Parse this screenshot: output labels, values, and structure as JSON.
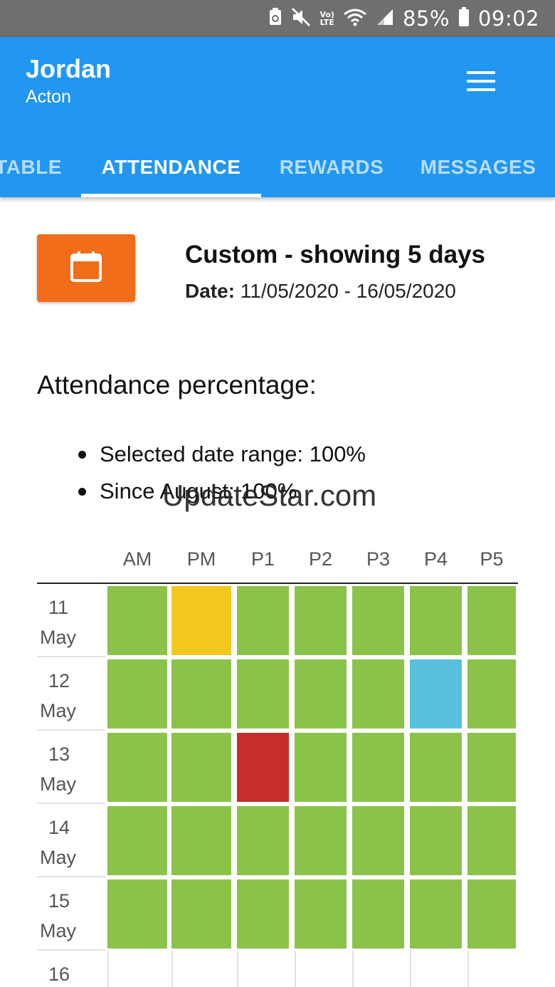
{
  "status_bar": {
    "battery_percent": "85%",
    "time": "09:02",
    "lte_label": "Vo)\nLTE",
    "icons": [
      "recycle-icon",
      "mute-icon",
      "volte-icon",
      "wifi-icon",
      "signal-icon",
      "battery-icon"
    ]
  },
  "header": {
    "first_name": "Jordan",
    "last_name": "Acton",
    "menu_icon": "hamburger-menu-icon"
  },
  "tabs": [
    {
      "label": "TABLE",
      "active": false
    },
    {
      "label": "ATTENDANCE",
      "active": true
    },
    {
      "label": "REWARDS",
      "active": false
    },
    {
      "label": "MESSAGES",
      "active": false
    }
  ],
  "filter": {
    "icon": "calendar-icon",
    "title": "Custom - showing 5 days",
    "date_label": "Date:",
    "date_value": " 11/05/2020 - 16/05/2020"
  },
  "attendance": {
    "heading": "Attendance percentage:",
    "items": [
      "Selected date range: 100%",
      "Since August: 100%"
    ]
  },
  "watermark": "UpdateStar.com",
  "grid": {
    "columns": [
      "AM",
      "PM",
      "P1",
      "P2",
      "P3",
      "P4",
      "P5"
    ],
    "rows": [
      {
        "day": "11",
        "month": "May",
        "cells": [
          "present",
          "late",
          "present",
          "present",
          "present",
          "present",
          "present"
        ]
      },
      {
        "day": "12",
        "month": "May",
        "cells": [
          "present",
          "present",
          "present",
          "present",
          "present",
          "authorised",
          "present"
        ]
      },
      {
        "day": "13",
        "month": "May",
        "cells": [
          "present",
          "present",
          "absent",
          "present",
          "present",
          "present",
          "present"
        ]
      },
      {
        "day": "14",
        "month": "May",
        "cells": [
          "present",
          "present",
          "present",
          "present",
          "present",
          "present",
          "present"
        ]
      },
      {
        "day": "15",
        "month": "May",
        "cells": [
          "present",
          "present",
          "present",
          "present",
          "present",
          "present",
          "present"
        ]
      },
      {
        "day": "16",
        "month": "",
        "cells": [
          "none",
          "none",
          "none",
          "none",
          "none",
          "none",
          "none"
        ]
      }
    ],
    "colors": {
      "present": "#8bc34a",
      "late": "#f2c71f",
      "authorised": "#5bc0de",
      "absent": "#c62d2d",
      "none": "#ffffff"
    }
  },
  "colors": {
    "app_bar": "#2196f3",
    "status_bar": "#6f6f6f",
    "calendar_button": "#f26d1a"
  }
}
